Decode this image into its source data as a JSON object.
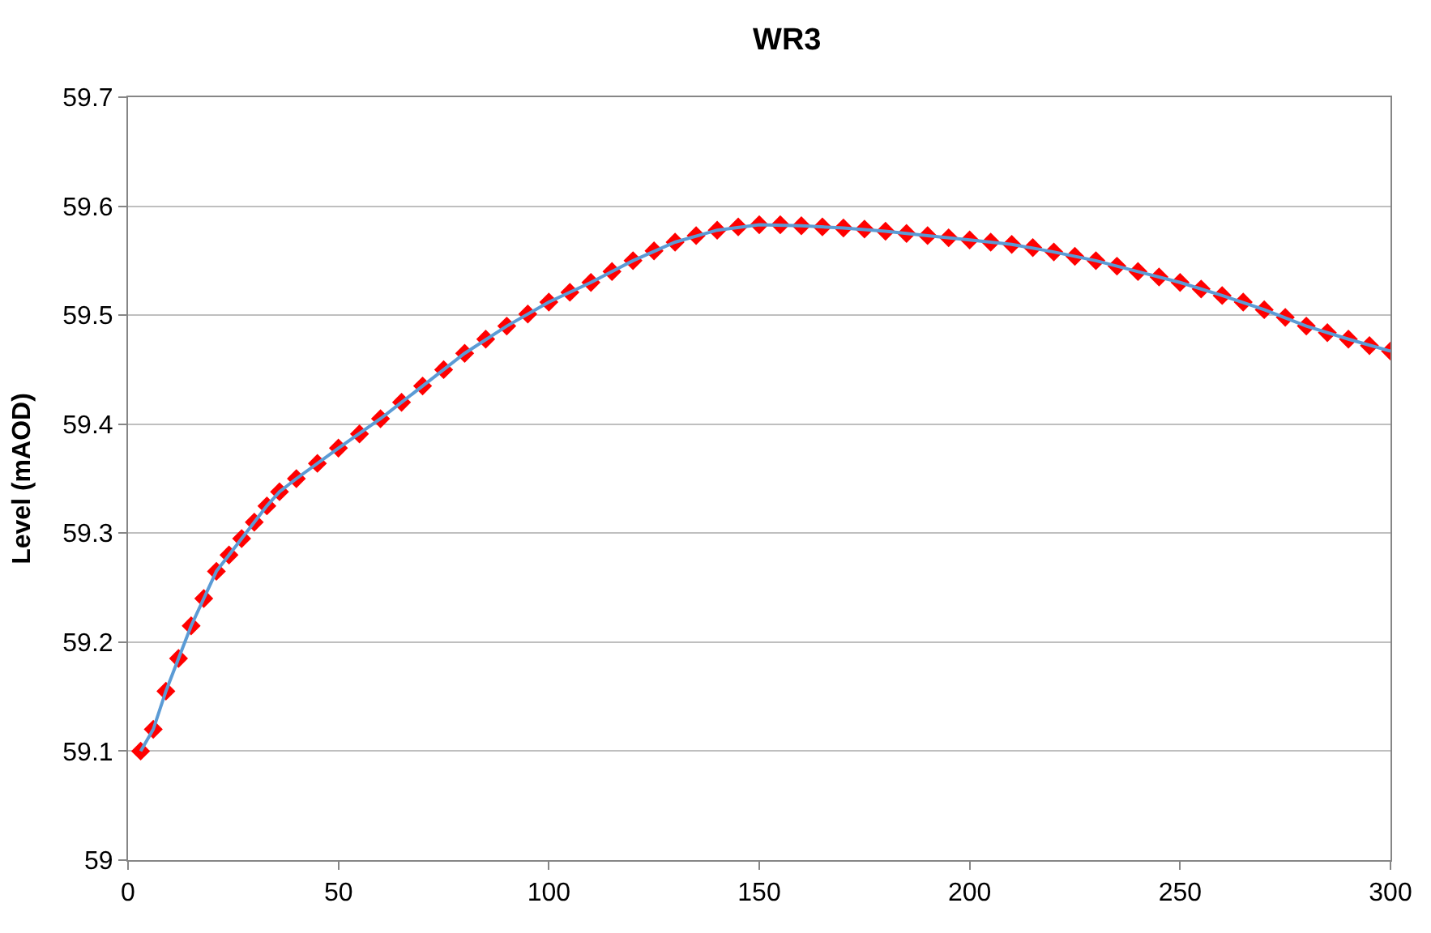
{
  "chart_data": {
    "type": "scatter",
    "title": "WR3",
    "ylabel": "Level (mAOD)",
    "xlim": [
      0,
      300
    ],
    "xticks": [
      0,
      50,
      100,
      150,
      200,
      250,
      300
    ],
    "ylim": [
      59,
      59.7
    ],
    "yticks": [
      59,
      59.1,
      59.2,
      59.3,
      59.4,
      59.5,
      59.6,
      59.7
    ],
    "grid": "y",
    "series": [
      {
        "marker": "diamond",
        "color": "#ff0000",
        "x": [
          3,
          6,
          9,
          12,
          15,
          18,
          21,
          24,
          27,
          30,
          33,
          36,
          40,
          45,
          50,
          55,
          60,
          65,
          70,
          75,
          80,
          85,
          90,
          95,
          100,
          105,
          110,
          115,
          120,
          125,
          130,
          135,
          140,
          145,
          150,
          155,
          160,
          165,
          170,
          175,
          180,
          185,
          190,
          195,
          200,
          205,
          210,
          215,
          220,
          225,
          230,
          235,
          240,
          245,
          250,
          255,
          260,
          265,
          270,
          275,
          280,
          285,
          290,
          295,
          300
        ],
        "values": [
          59.1,
          59.12,
          59.155,
          59.185,
          59.215,
          59.24,
          59.265,
          59.28,
          59.295,
          59.31,
          59.325,
          59.338,
          59.35,
          59.364,
          59.378,
          59.391,
          59.405,
          59.42,
          59.435,
          59.45,
          59.465,
          59.478,
          59.49,
          59.501,
          59.512,
          59.521,
          59.53,
          59.54,
          59.55,
          59.559,
          59.567,
          59.573,
          59.578,
          59.581,
          59.583,
          59.583,
          59.582,
          59.581,
          59.58,
          59.579,
          59.577,
          59.575,
          59.573,
          59.571,
          59.569,
          59.567,
          59.565,
          59.562,
          59.558,
          59.554,
          59.55,
          59.545,
          59.54,
          59.535,
          59.53,
          59.524,
          59.518,
          59.512,
          59.505,
          59.498,
          59.49,
          59.484,
          59.478,
          59.472,
          59.467
        ]
      },
      {
        "type": "line",
        "marker": "none",
        "line_style": "solid",
        "color": "#5b9bd5",
        "x": [
          3,
          6,
          9,
          12,
          15,
          18,
          21,
          24,
          27,
          30,
          33,
          36,
          40,
          50,
          60,
          70,
          80,
          90,
          100,
          110,
          120,
          130,
          140,
          150,
          160,
          170,
          180,
          190,
          200,
          210,
          220,
          230,
          240,
          250,
          260,
          270,
          280,
          290,
          300
        ],
        "values": [
          59.1,
          59.12,
          59.155,
          59.185,
          59.215,
          59.24,
          59.265,
          59.28,
          59.295,
          59.31,
          59.325,
          59.338,
          59.35,
          59.378,
          59.405,
          59.435,
          59.465,
          59.49,
          59.512,
          59.53,
          59.55,
          59.567,
          59.578,
          59.583,
          59.582,
          59.58,
          59.577,
          59.573,
          59.569,
          59.565,
          59.558,
          59.55,
          59.54,
          59.53,
          59.518,
          59.505,
          59.49,
          59.478,
          59.467
        ]
      }
    ]
  }
}
